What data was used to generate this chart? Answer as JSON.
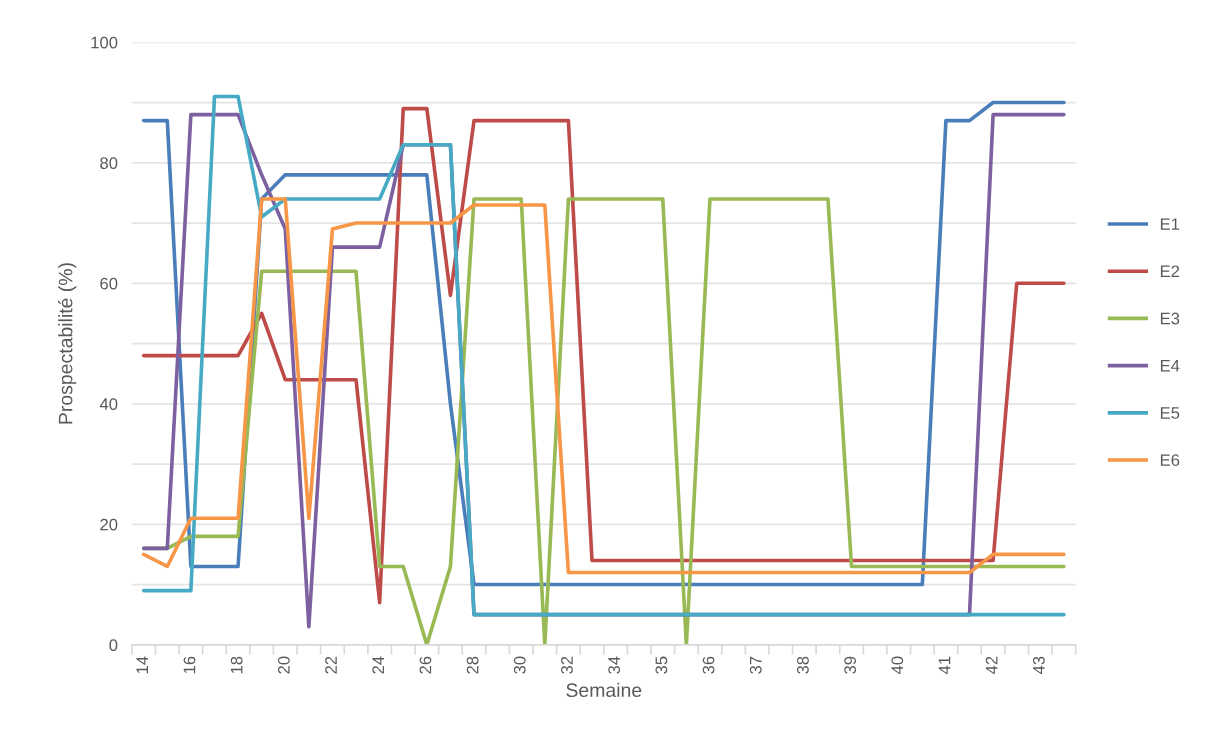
{
  "chart_data": {
    "type": "line",
    "xlabel": "Semaine",
    "ylabel": "Prospectabilité (%)",
    "categories": [
      "14",
      null,
      "16",
      null,
      "18",
      null,
      "20",
      null,
      "22",
      null,
      "24",
      null,
      "26",
      null,
      "28",
      null,
      "30",
      null,
      "32",
      null,
      "34",
      null,
      "35",
      null,
      "36",
      null,
      "37",
      null,
      "38",
      null,
      "39",
      null,
      "40",
      null,
      "41",
      null,
      "42",
      null,
      "43",
      null
    ],
    "ylim": [
      0,
      100
    ],
    "yticks": [
      0,
      {
        "value": 10,
        "label": null
      },
      20,
      {
        "value": 30,
        "label": null
      },
      40,
      {
        "value": 50,
        "label": null
      },
      60,
      {
        "value": 70,
        "label": null
      },
      80,
      {
        "value": 90,
        "label": null
      },
      100
    ],
    "grid": "y",
    "legend": "right",
    "marker": "none",
    "line_style": "solid",
    "series": [
      {
        "name": "E1",
        "color": "#4a7ebb",
        "values": [
          87,
          87,
          13,
          13,
          13,
          74,
          78,
          78,
          78,
          78,
          78,
          78,
          78,
          40,
          10,
          10,
          10,
          10,
          10,
          10,
          10,
          10,
          10,
          10,
          10,
          10,
          10,
          10,
          10,
          10,
          10,
          10,
          10,
          10,
          87,
          87,
          90,
          90,
          90,
          90
        ]
      },
      {
        "name": "E2",
        "color": "#be4b48",
        "values": [
          48,
          48,
          48,
          48,
          48,
          55,
          44,
          44,
          44,
          44,
          7,
          89,
          89,
          58,
          87,
          87,
          87,
          87,
          87,
          14,
          14,
          14,
          14,
          14,
          14,
          14,
          14,
          14,
          14,
          14,
          14,
          14,
          14,
          14,
          14,
          14,
          14,
          60,
          60,
          60
        ]
      },
      {
        "name": "E3",
        "color": "#98b954",
        "values": [
          16,
          16,
          18,
          18,
          18,
          62,
          62,
          62,
          62,
          62,
          13,
          13,
          0,
          13,
          74,
          74,
          74,
          0,
          74,
          74,
          74,
          74,
          74,
          0,
          74,
          74,
          74,
          74,
          74,
          74,
          13,
          13,
          13,
          13,
          13,
          13,
          13,
          13,
          13,
          13
        ]
      },
      {
        "name": "E4",
        "color": "#7d60a0",
        "values": [
          16,
          16,
          88,
          88,
          88,
          78,
          69,
          3,
          66,
          66,
          66,
          83,
          83,
          83,
          5,
          5,
          5,
          5,
          5,
          5,
          5,
          5,
          5,
          5,
          5,
          5,
          5,
          5,
          5,
          5,
          5,
          5,
          5,
          5,
          5,
          5,
          88,
          88,
          88,
          88
        ]
      },
      {
        "name": "E5",
        "color": "#46aac5",
        "values": [
          9,
          9,
          9,
          91,
          91,
          71,
          74,
          74,
          74,
          74,
          74,
          83,
          83,
          83,
          5,
          5,
          5,
          5,
          5,
          5,
          5,
          5,
          5,
          5,
          5,
          5,
          5,
          5,
          5,
          5,
          5,
          5,
          5,
          5,
          5,
          5,
          5,
          5,
          5,
          5
        ]
      },
      {
        "name": "E6",
        "color": "#f79646",
        "values": [
          15,
          13,
          21,
          21,
          21,
          74,
          74,
          21,
          69,
          70,
          70,
          70,
          70,
          70,
          73,
          73,
          73,
          73,
          12,
          12,
          12,
          12,
          12,
          12,
          12,
          12,
          12,
          12,
          12,
          12,
          12,
          12,
          12,
          12,
          12,
          12,
          15,
          15,
          15,
          15
        ]
      }
    ]
  }
}
